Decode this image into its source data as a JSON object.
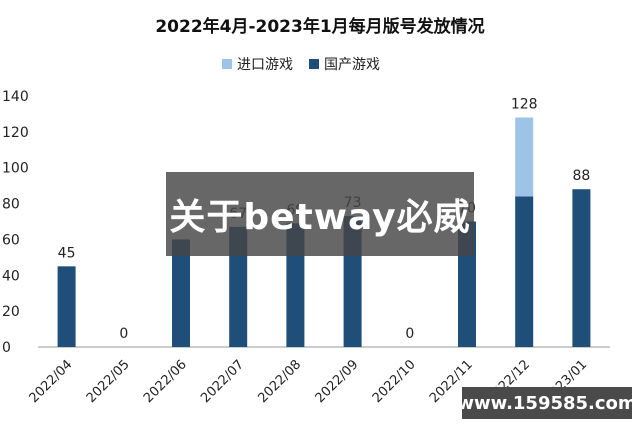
{
  "chart_data": {
    "type": "bar",
    "stacked": true,
    "title": "2022年4月-2023年1月每月版号发放情况",
    "categories": [
      "2022/04",
      "2022/05",
      "2022/06",
      "2022/07",
      "2022/08",
      "2022/09",
      "2022/10",
      "2022/11",
      "2022/12",
      "2023/01"
    ],
    "series": [
      {
        "name": "进口游戏",
        "color": "#9dc3e6",
        "values": [
          0,
          0,
          0,
          0,
          0,
          0,
          0,
          0,
          44,
          0
        ]
      },
      {
        "name": "国产游戏",
        "color": "#1f4e79",
        "values": [
          45,
          0,
          60,
          67,
          69,
          73,
          0,
          70,
          84,
          88
        ]
      }
    ],
    "totals": [
      45,
      0,
      60,
      67,
      69,
      73,
      0,
      70,
      128,
      88
    ],
    "total_labels": [
      "45",
      "0",
      "",
      "67",
      "69",
      "73",
      "0",
      "70",
      "128",
      "88"
    ],
    "ylim": [
      0,
      140
    ],
    "yticks": [
      0,
      20,
      40,
      60,
      80,
      100,
      120,
      140
    ],
    "grid": false,
    "legend_position": "top-center"
  },
  "overlay_text": "关于betway必威",
  "watermark_text": "www.159585.com"
}
